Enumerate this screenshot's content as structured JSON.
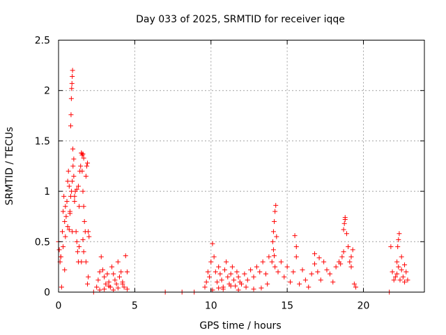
{
  "chart_data": {
    "type": "scatter",
    "title": "Day 033 of 2025, SRMTID for receiver iqqe",
    "xlabel": "GPS time / hours",
    "ylabel": "SRMTID / TECUs",
    "xlim": [
      0,
      24
    ],
    "ylim": [
      0,
      2.5
    ],
    "xticks": [
      0,
      5,
      10,
      15,
      20
    ],
    "xtick_labels": [
      "0",
      "5",
      "10",
      "15",
      "20"
    ],
    "yticks": [
      0,
      0.5,
      1,
      1.5,
      2,
      2.5
    ],
    "ytick_labels": [
      "0",
      "0.5",
      "1",
      "1.5",
      "2",
      "2.5"
    ],
    "grid": true,
    "marker": "+",
    "color": "#ff0000",
    "series": [
      {
        "name": "SRMTID",
        "x": [
          0.0,
          0.05,
          0.1,
          0.15,
          0.2,
          0.25,
          0.3,
          0.35,
          0.4,
          0.45,
          0.5,
          0.55,
          0.6,
          0.65,
          0.7,
          0.75,
          0.8,
          0.85,
          0.9,
          0.95,
          1.0,
          1.05,
          1.1,
          1.15,
          1.2,
          1.25,
          1.3,
          1.35,
          1.4,
          1.45,
          1.5,
          1.55,
          1.6,
          1.65,
          1.7,
          1.75,
          1.8,
          1.85,
          1.9,
          1.95,
          2.0,
          0.15,
          0.3,
          0.45,
          0.6,
          0.75,
          0.9,
          1.05,
          1.2,
          1.35,
          1.5,
          1.65,
          1.8,
          1.95,
          0.4,
          0.7,
          1.0,
          1.3,
          1.6,
          1.9,
          0.8,
          0.82,
          0.84,
          0.86,
          0.88,
          0.9,
          0.92,
          0.94,
          1.5,
          1.55,
          1.6,
          1.65,
          2.3,
          2.5,
          2.6,
          2.7,
          2.8,
          2.9,
          3.0,
          3.1,
          3.2,
          3.3,
          3.4,
          3.5,
          3.6,
          3.7,
          3.8,
          3.9,
          4.0,
          4.1,
          4.2,
          4.3,
          4.4,
          4.5,
          2.7,
          3.0,
          3.3,
          3.6,
          3.9,
          4.2,
          4.5,
          7.0,
          8.1,
          8.9,
          9.6,
          9.7,
          9.8,
          9.9,
          10.0,
          10.1,
          10.2,
          10.3,
          10.4,
          10.5,
          10.6,
          10.7,
          10.8,
          10.9,
          11.0,
          11.1,
          11.2,
          11.3,
          11.4,
          11.5,
          11.6,
          11.7,
          11.8,
          11.9,
          12.0,
          12.2,
          12.4,
          12.6,
          12.8,
          13.0,
          13.2,
          13.4,
          13.6,
          13.8,
          10.1,
          10.5,
          10.8,
          11.3,
          11.8,
          12.3,
          12.8,
          13.3,
          13.7,
          14.0,
          14.05,
          14.1,
          14.15,
          14.2,
          14.25,
          14.3,
          14.1,
          14.15,
          14.2,
          14.4,
          14.6,
          14.8,
          15.0,
          15.2,
          15.4,
          15.6,
          15.8,
          16.0,
          16.2,
          16.4,
          16.6,
          16.8,
          17.0,
          17.2,
          17.4,
          17.6,
          17.8,
          15.5,
          15.6,
          16.8,
          17.1,
          18.0,
          18.2,
          18.4,
          18.5,
          18.6,
          18.7,
          18.8,
          18.9,
          19.0,
          19.1,
          19.2,
          19.3,
          19.4,
          19.5,
          18.7,
          18.75,
          18.8,
          19.2,
          21.7,
          21.8,
          21.9,
          22.0,
          22.1,
          22.2,
          22.3,
          22.4,
          22.5,
          22.6,
          22.7,
          22.8,
          22.9,
          22.2,
          22.25,
          22.3,
          22.35,
          22.5,
          22.7
        ],
        "y": [
          0.5,
          0.42,
          0.3,
          0.35,
          0.05,
          0.6,
          0.8,
          0.95,
          0.7,
          0.85,
          0.75,
          0.9,
          1.1,
          1.2,
          1.05,
          0.8,
          0.95,
          1.0,
          1.1,
          1.25,
          1.15,
          0.9,
          1.0,
          0.6,
          0.5,
          0.4,
          0.3,
          0.85,
          1.2,
          1.25,
          1.38,
          1.2,
          1.0,
          0.85,
          0.7,
          0.6,
          1.15,
          1.25,
          1.28,
          0.6,
          0.55,
          0.35,
          0.45,
          0.55,
          0.65,
          0.78,
          0.6,
          0.95,
          1.02,
          0.45,
          0.3,
          0.4,
          0.3,
          0.15,
          0.22,
          0.62,
          1.32,
          1.05,
          0.52,
          0.08,
          1.65,
          1.76,
          1.92,
          2.02,
          2.07,
          2.14,
          2.2,
          1.42,
          1.38,
          1.36,
          1.37,
          1.33,
          0.0,
          0.05,
          0.12,
          0.2,
          0.35,
          0.22,
          0.15,
          0.08,
          0.18,
          0.1,
          0.05,
          0.25,
          0.18,
          0.12,
          0.08,
          0.3,
          0.15,
          0.2,
          0.1,
          0.05,
          0.36,
          0.2,
          0.02,
          0.03,
          0.06,
          0.02,
          0.04,
          0.08,
          0.03,
          0.0,
          0.0,
          0.0,
          0.05,
          0.1,
          0.2,
          0.15,
          0.3,
          0.48,
          0.35,
          0.2,
          0.1,
          0.25,
          0.18,
          0.12,
          0.05,
          0.22,
          0.3,
          0.15,
          0.08,
          0.18,
          0.25,
          0.12,
          0.06,
          0.2,
          0.15,
          0.1,
          0.08,
          0.18,
          0.12,
          0.22,
          0.15,
          0.25,
          0.2,
          0.3,
          0.18,
          0.35,
          0.02,
          0.04,
          0.03,
          0.06,
          0.02,
          0.05,
          0.03,
          0.04,
          0.08,
          0.3,
          0.5,
          0.6,
          0.7,
          0.8,
          0.86,
          0.55,
          0.42,
          0.36,
          0.25,
          0.2,
          0.3,
          0.15,
          0.25,
          0.1,
          0.2,
          0.35,
          0.08,
          0.22,
          0.12,
          0.05,
          0.18,
          0.28,
          0.2,
          0.12,
          0.3,
          0.22,
          0.18,
          0.56,
          0.45,
          0.38,
          0.34,
          0.1,
          0.25,
          0.3,
          0.28,
          0.35,
          0.4,
          0.72,
          0.58,
          0.45,
          0.3,
          0.25,
          0.42,
          0.08,
          0.05,
          0.62,
          0.68,
          0.74,
          0.35,
          0.0,
          0.45,
          0.2,
          0.12,
          0.15,
          0.18,
          0.25,
          0.12,
          0.22,
          0.15,
          0.1,
          0.2,
          0.12,
          0.3,
          0.45,
          0.52,
          0.58,
          0.35,
          0.27
        ]
      }
    ]
  }
}
